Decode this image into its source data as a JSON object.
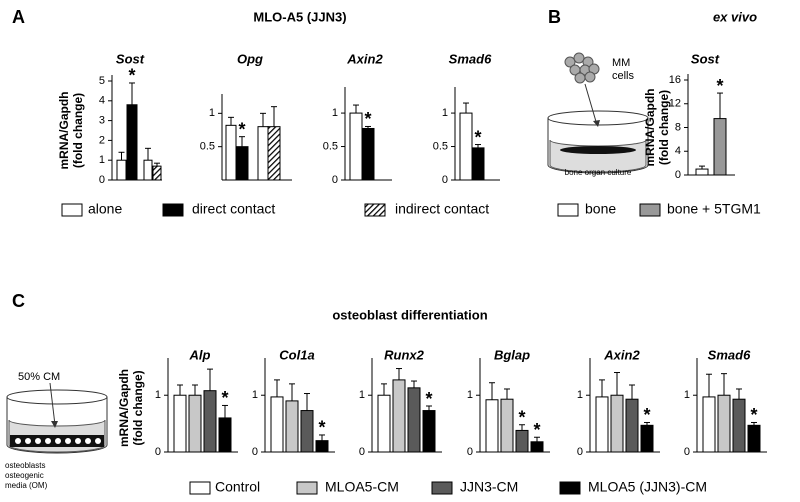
{
  "panels": [
    {
      "label": "A",
      "title": "MLO-A5 (JJN3)",
      "legend": [
        {
          "name": "alone",
          "color": "#ffffff"
        },
        {
          "name": "direct contact",
          "color": "#000000"
        },
        {
          "name": "indirect contact",
          "color": "hatch"
        }
      ]
    },
    {
      "label": "B",
      "title": "ex vivo",
      "diagram_labels": [
        "MM",
        "cells",
        "bone organ culture"
      ],
      "legend": [
        {
          "name": "bone",
          "color": "#ffffff"
        },
        {
          "name": "bone + 5TGM1",
          "color": "#999999"
        }
      ]
    },
    {
      "label": "C",
      "title": "osteoblast differentiation",
      "diagram_labels": [
        "50% CM",
        "osteoblasts",
        "osteogenic",
        "media (OM)"
      ],
      "legend": [
        {
          "name": "Control",
          "color": "#ffffff"
        },
        {
          "name": "MLOA5-CM",
          "color": "#c8c8c8"
        },
        {
          "name": "JJN3-CM",
          "color": "#5a5a5a"
        },
        {
          "name": "MLOA5 (JJN3)-CM",
          "color": "#000000"
        }
      ]
    }
  ],
  "chart_data": [
    {
      "type": "bar",
      "title": "Sost",
      "ylabel": [
        "mRNA/Gapdh",
        "(fold change)"
      ],
      "values": [
        1.0,
        3.8,
        1.0,
        0.7
      ],
      "errors": [
        0.4,
        1.1,
        0.6,
        0.15
      ],
      "colors": [
        "#ffffff",
        "#000000",
        "#ffffff",
        "hatch"
      ],
      "significance": [
        null,
        "*",
        null,
        null
      ],
      "ylim": [
        0,
        5
      ],
      "yticks": [
        0,
        1,
        2,
        3,
        4,
        5
      ]
    },
    {
      "type": "bar",
      "title": "Opg",
      "values": [
        0.82,
        0.5,
        0.8,
        0.8
      ],
      "errors": [
        0.12,
        0.15,
        0.2,
        0.3
      ],
      "colors": [
        "#ffffff",
        "#000000",
        "#ffffff",
        "hatch"
      ],
      "significance": [
        null,
        "*",
        null,
        null
      ],
      "ylim": [
        0,
        1.2
      ],
      "yticks": [
        0.5,
        1
      ]
    },
    {
      "type": "bar",
      "title": "Axin2",
      "values": [
        1.0,
        0.77
      ],
      "errors": [
        0.12,
        0.03
      ],
      "colors": [
        "#ffffff",
        "#000000"
      ],
      "significance": [
        null,
        "*"
      ],
      "ylim": [
        0,
        1.3
      ],
      "yticks": [
        0,
        0.5,
        1
      ]
    },
    {
      "type": "bar",
      "title": "Smad6",
      "values": [
        1.0,
        0.48
      ],
      "errors": [
        0.15,
        0.05
      ],
      "colors": [
        "#ffffff",
        "#000000"
      ],
      "significance": [
        null,
        "*"
      ],
      "ylim": [
        0,
        1.3
      ],
      "yticks": [
        0,
        0.5,
        1
      ]
    },
    {
      "type": "bar",
      "title": "Sost",
      "ylabel": [
        "mRNA/Gapdh",
        "(fold change)"
      ],
      "values": [
        1,
        9.5
      ],
      "errors": [
        0.5,
        4.3
      ],
      "colors": [
        "#ffffff",
        "#999999"
      ],
      "significance": [
        null,
        "*"
      ],
      "ylim": [
        0,
        16
      ],
      "yticks": [
        0,
        4,
        8,
        12,
        16
      ]
    },
    {
      "type": "bar",
      "title": "Alp",
      "ylabel": [
        "mRNA/Gapdh",
        "(fold change)"
      ],
      "values": [
        1.0,
        1.0,
        1.08,
        0.6
      ],
      "errors": [
        0.18,
        0.18,
        0.38,
        0.22
      ],
      "colors": [
        "#ffffff",
        "#c8c8c8",
        "#5a5a5a",
        "#000000"
      ],
      "significance": [
        null,
        null,
        null,
        "*"
      ],
      "ylim": [
        0,
        1.55
      ],
      "yticks": [
        0,
        1
      ]
    },
    {
      "type": "bar",
      "title": "Col1a",
      "values": [
        0.97,
        0.9,
        0.73,
        0.2
      ],
      "errors": [
        0.3,
        0.3,
        0.3,
        0.1
      ],
      "colors": [
        "#ffffff",
        "#c8c8c8",
        "#5a5a5a",
        "#000000"
      ],
      "significance": [
        null,
        null,
        null,
        "*"
      ],
      "ylim": [
        0,
        1.55
      ],
      "yticks": [
        0,
        1
      ]
    },
    {
      "type": "bar",
      "title": "Runx2",
      "values": [
        1.0,
        1.27,
        1.13,
        0.73
      ],
      "errors": [
        0.2,
        0.2,
        0.12,
        0.08
      ],
      "colors": [
        "#ffffff",
        "#c8c8c8",
        "#5a5a5a",
        "#000000"
      ],
      "significance": [
        null,
        null,
        null,
        "*"
      ],
      "ylim": [
        0,
        1.55
      ],
      "yticks": [
        0,
        1
      ]
    },
    {
      "type": "bar",
      "title": "Bglap",
      "values": [
        0.92,
        0.93,
        0.38,
        0.18
      ],
      "errors": [
        0.3,
        0.18,
        0.1,
        0.08
      ],
      "colors": [
        "#ffffff",
        "#c8c8c8",
        "#5a5a5a",
        "#000000"
      ],
      "significance": [
        null,
        null,
        "*",
        "*"
      ],
      "ylim": [
        0,
        1.55
      ],
      "yticks": [
        0,
        1
      ]
    },
    {
      "type": "bar",
      "title": "Axin2",
      "values": [
        0.97,
        1.0,
        0.93,
        0.47
      ],
      "errors": [
        0.3,
        0.4,
        0.25,
        0.05
      ],
      "colors": [
        "#ffffff",
        "#c8c8c8",
        "#5a5a5a",
        "#000000"
      ],
      "significance": [
        null,
        null,
        null,
        "*"
      ],
      "ylim": [
        0,
        1.55
      ],
      "yticks": [
        0,
        1
      ]
    },
    {
      "type": "bar",
      "title": "Smad6",
      "values": [
        0.97,
        1.0,
        0.93,
        0.47
      ],
      "errors": [
        0.4,
        0.38,
        0.18,
        0.05
      ],
      "colors": [
        "#ffffff",
        "#c8c8c8",
        "#5a5a5a",
        "#000000"
      ],
      "significance": [
        null,
        null,
        null,
        "*"
      ],
      "ylim": [
        0,
        1.55
      ],
      "yticks": [
        0,
        1
      ]
    }
  ]
}
